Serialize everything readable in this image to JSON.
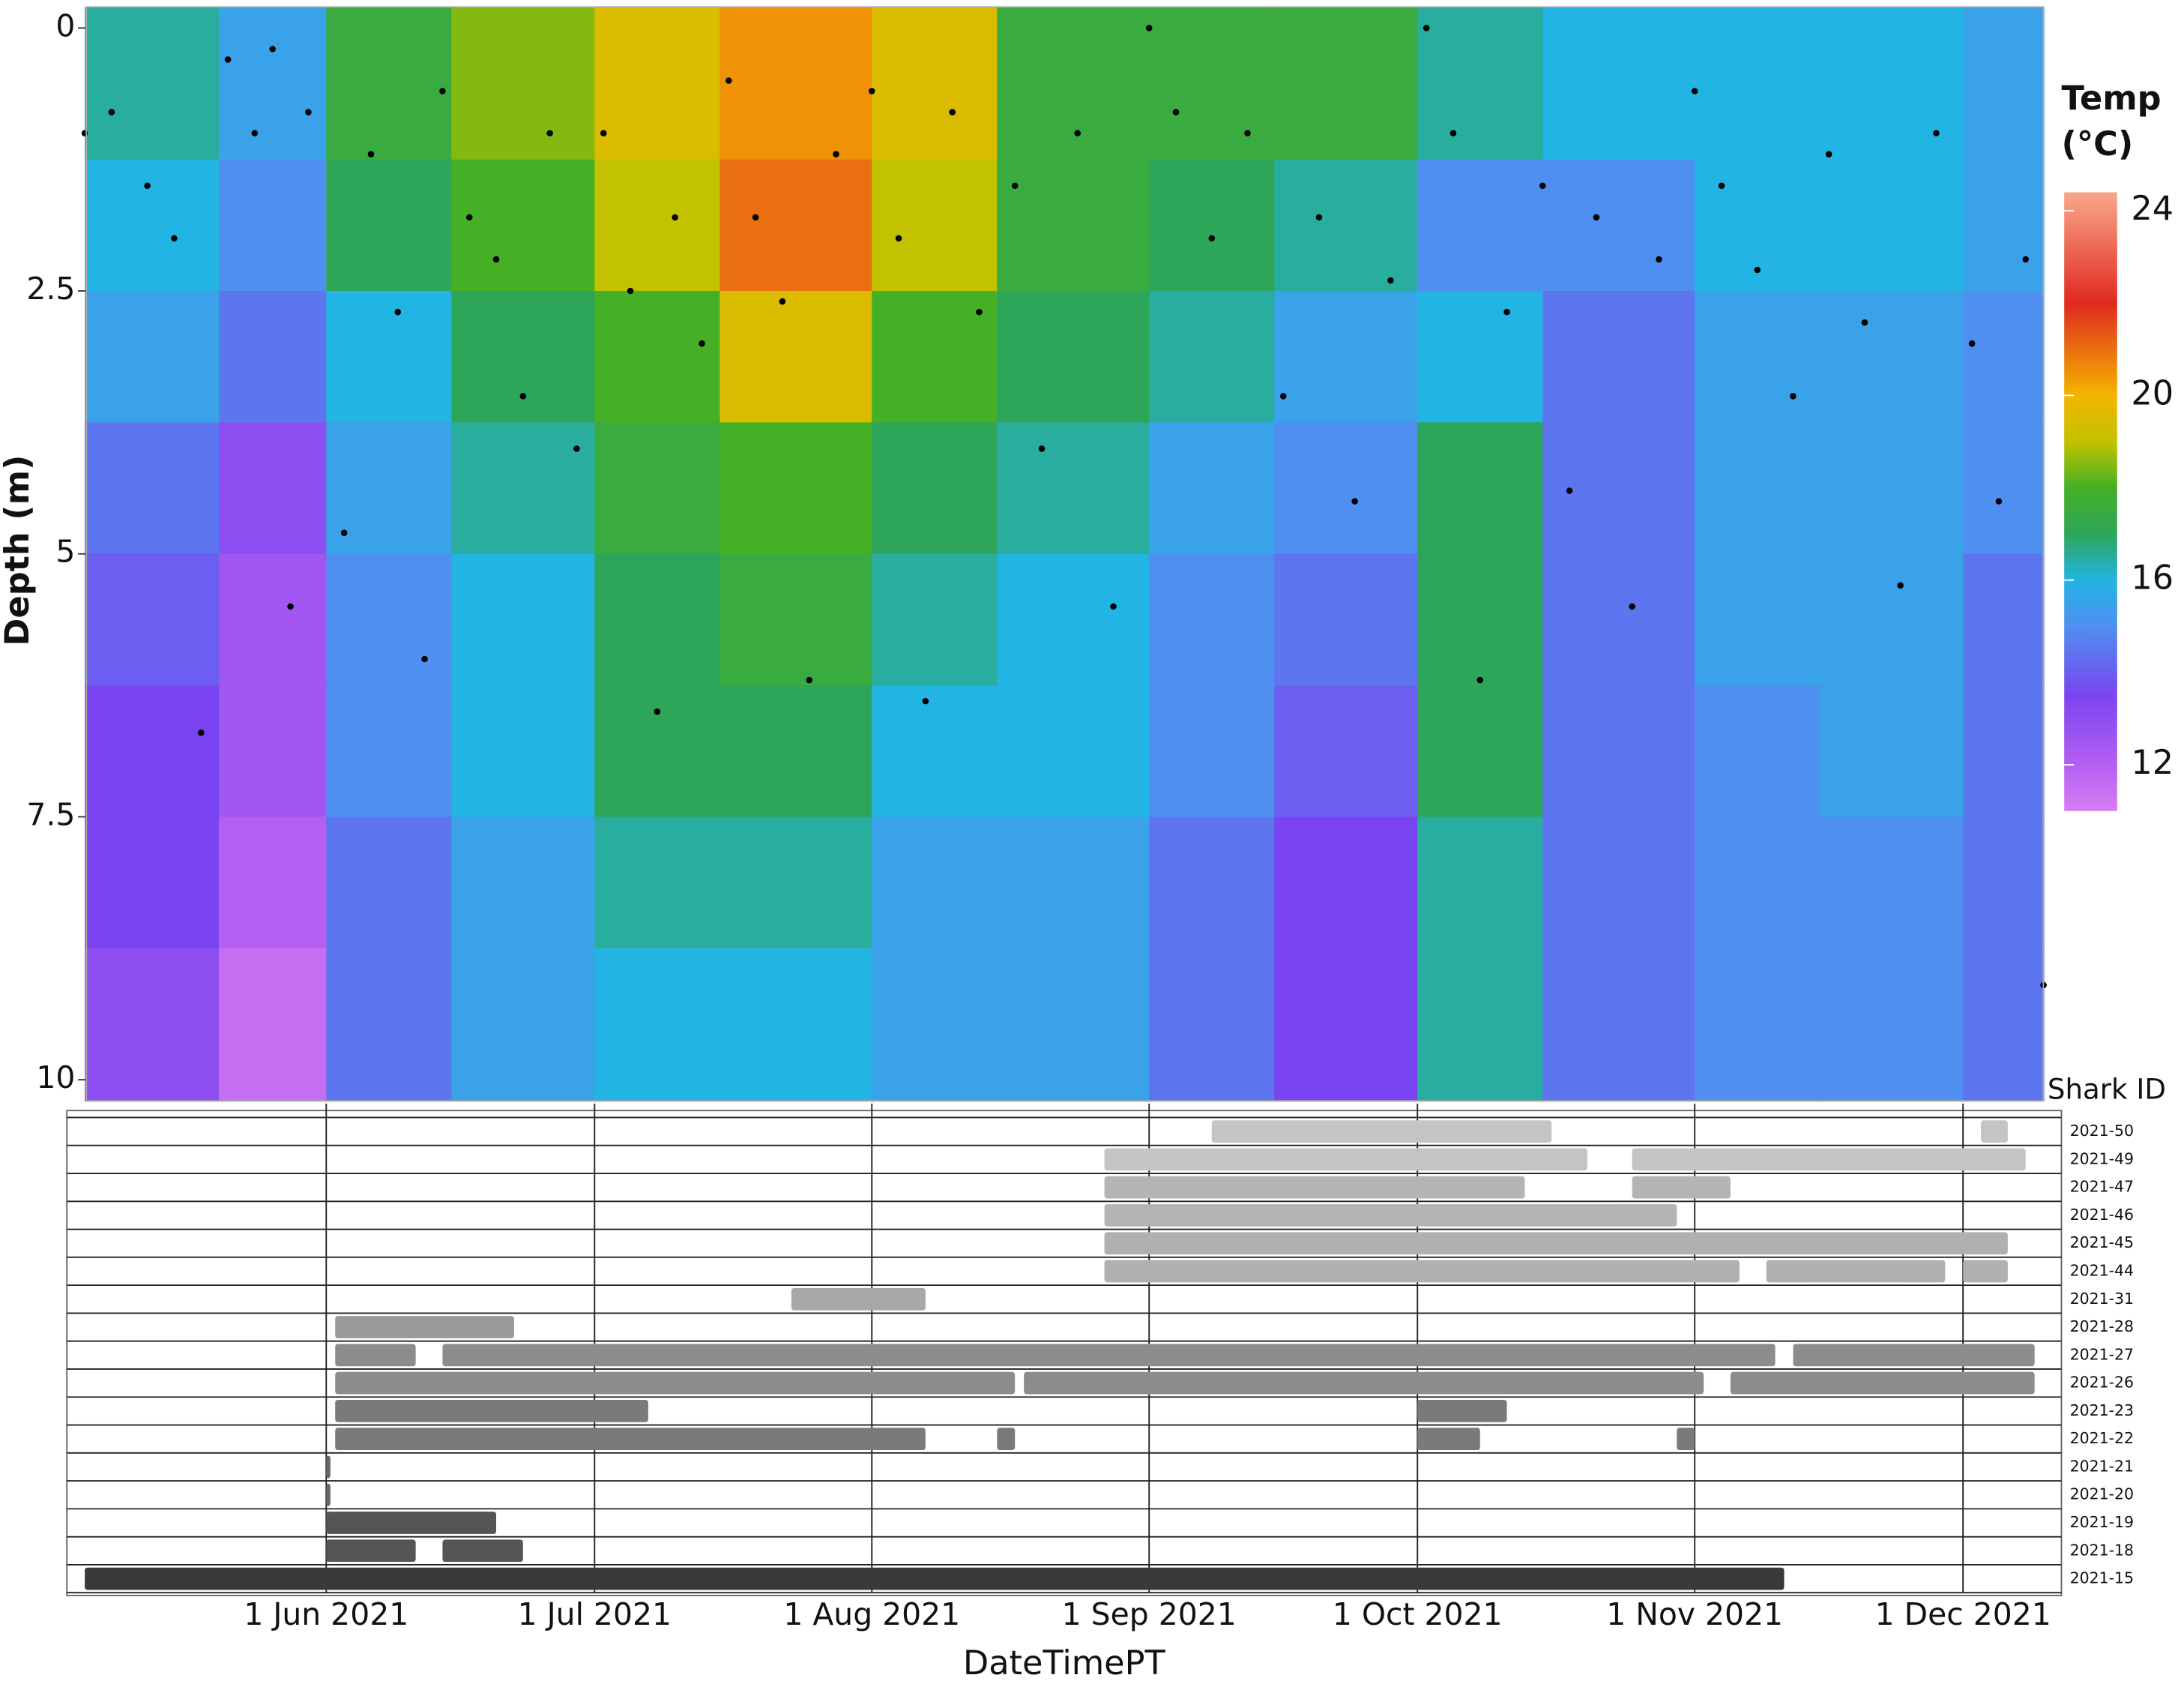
{
  "chart_data": [
    {
      "type": "heatmap",
      "ylabel": "Depth (m)",
      "colorbar_title": [
        "Temp",
        "(°C)"
      ],
      "xlim": [
        "2021-05-03",
        "2021-12-12"
      ],
      "ylim": [
        -0.2,
        10.2
      ],
      "yticks": [
        0,
        2.5,
        5,
        7.5,
        10
      ],
      "reverse_y": true,
      "x": [
        "2021-05-05",
        "2021-05-20",
        "2021-06-01",
        "2021-06-15",
        "2021-07-01",
        "2021-07-15",
        "2021-08-01",
        "2021-08-15",
        "2021-09-01",
        "2021-09-15",
        "2021-10-01",
        "2021-10-15",
        "2021-11-01",
        "2021-11-15",
        "2021-12-01",
        "2021-12-10"
      ],
      "y": [
        -0.2,
        1.25,
        2.5,
        3.75,
        5,
        6.25,
        7.5,
        8.75,
        10.2
      ],
      "z": [
        [
          16.5,
          15.5,
          17.5,
          18.5,
          19.5,
          20.5,
          19.5,
          17.5,
          17.5,
          17.5,
          16.5,
          16,
          16,
          16,
          15.5
        ],
        [
          16,
          15,
          17,
          18,
          19,
          21,
          19,
          17.5,
          17,
          16.5,
          15,
          15,
          16,
          16,
          15.5
        ],
        [
          15.5,
          14.5,
          16,
          17,
          18,
          19.5,
          18,
          17,
          16.5,
          15.5,
          16,
          14.5,
          15.5,
          15.5,
          15
        ],
        [
          14.5,
          13,
          15.5,
          16.5,
          17.5,
          18,
          17,
          16.5,
          15.5,
          15,
          17,
          14.5,
          15.5,
          15.5,
          15
        ],
        [
          14,
          12.5,
          15,
          16,
          17,
          17.5,
          16.5,
          16,
          15,
          14.5,
          17,
          14.5,
          15.5,
          15.5,
          14.5
        ],
        [
          13.5,
          12.5,
          15,
          16,
          17,
          17,
          16,
          16,
          15,
          14,
          17,
          14.5,
          15,
          15.5,
          14.5
        ],
        [
          13.5,
          12,
          14.5,
          15.5,
          16.5,
          16.5,
          15.5,
          15.5,
          14.5,
          13.5,
          16.5,
          14.5,
          15,
          15,
          14.5
        ],
        [
          13,
          11.5,
          14.5,
          15.5,
          16,
          16,
          15.5,
          15.5,
          14.5,
          13.5,
          16.5,
          14.5,
          15,
          15,
          14.5
        ]
      ],
      "clim": [
        11,
        24.4
      ],
      "colorbar_ticks": [
        12,
        16,
        20,
        24
      ],
      "colorscale": [
        [
          11,
          "#d67cf2"
        ],
        [
          12,
          "#b45ff2"
        ],
        [
          13.5,
          "#7a45f0"
        ],
        [
          15,
          "#4f8ff0"
        ],
        [
          16,
          "#22b4e2"
        ],
        [
          17,
          "#2ea65a"
        ],
        [
          18,
          "#45b025"
        ],
        [
          19,
          "#c2c200"
        ],
        [
          20,
          "#f4b400"
        ],
        [
          22,
          "#e02a20"
        ],
        [
          24.4,
          "#f9a88a"
        ]
      ],
      "points": {
        "color": "#000000",
        "x": [
          "2021-05-05",
          "2021-05-08",
          "2021-05-12",
          "2021-05-15",
          "2021-05-18",
          "2021-05-21",
          "2021-05-24",
          "2021-05-26",
          "2021-05-28",
          "2021-05-30",
          "2021-06-03",
          "2021-06-06",
          "2021-06-09",
          "2021-06-12",
          "2021-06-14",
          "2021-06-17",
          "2021-06-20",
          "2021-06-23",
          "2021-06-26",
          "2021-06-29",
          "2021-07-02",
          "2021-07-05",
          "2021-07-08",
          "2021-07-10",
          "2021-07-13",
          "2021-07-16",
          "2021-07-19",
          "2021-07-22",
          "2021-07-25",
          "2021-07-28",
          "2021-08-01",
          "2021-08-04",
          "2021-08-07",
          "2021-08-10",
          "2021-08-13",
          "2021-08-17",
          "2021-08-20",
          "2021-08-24",
          "2021-08-28",
          "2021-09-01",
          "2021-09-04",
          "2021-09-08",
          "2021-09-12",
          "2021-09-16",
          "2021-09-20",
          "2021-09-24",
          "2021-09-28",
          "2021-10-02",
          "2021-10-05",
          "2021-10-08",
          "2021-10-11",
          "2021-10-15",
          "2021-10-18",
          "2021-10-21",
          "2021-10-25",
          "2021-10-28",
          "2021-11-01",
          "2021-11-04",
          "2021-11-08",
          "2021-11-12",
          "2021-11-16",
          "2021-11-20",
          "2021-11-24",
          "2021-11-28",
          "2021-12-02",
          "2021-12-05",
          "2021-12-08",
          "2021-12-10"
        ],
        "y": [
          1.0,
          0.8,
          1.5,
          2.0,
          6.7,
          0.3,
          1.0,
          0.2,
          5.5,
          0.8,
          4.8,
          1.2,
          2.7,
          6.0,
          0.6,
          1.8,
          2.2,
          3.5,
          1.0,
          4.0,
          1.0,
          2.5,
          6.5,
          1.8,
          3.0,
          0.5,
          1.8,
          2.6,
          6.2,
          1.2,
          0.6,
          2.0,
          6.4,
          0.8,
          2.7,
          1.5,
          4.0,
          1.0,
          5.5,
          0.0,
          0.8,
          2.0,
          1.0,
          3.5,
          1.8,
          4.5,
          2.4,
          0.0,
          1.0,
          6.2,
          2.7,
          1.5,
          4.4,
          1.8,
          5.5,
          2.2,
          0.6,
          1.5,
          2.3,
          3.5,
          1.2,
          2.8,
          5.3,
          1.0,
          3.0,
          4.5,
          2.2,
          9.1
        ]
      }
    },
    {
      "type": "timeline",
      "xlabel": "DateTimePT",
      "category_title": "Shark ID",
      "xlim": [
        "2021-05-03",
        "2021-12-12"
      ],
      "xticks": [
        {
          "value": "2021-06-01",
          "label": "1 Jun 2021"
        },
        {
          "value": "2021-07-01",
          "label": "1 Jul 2021"
        },
        {
          "value": "2021-08-01",
          "label": "1 Aug 2021"
        },
        {
          "value": "2021-09-01",
          "label": "1 Sep 2021"
        },
        {
          "value": "2021-10-01",
          "label": "1 Oct 2021"
        },
        {
          "value": "2021-11-01",
          "label": "1 Nov 2021"
        },
        {
          "value": "2021-12-01",
          "label": "1 Dec 2021"
        }
      ],
      "categories": [
        "2021-50",
        "2021-49",
        "2021-47",
        "2021-46",
        "2021-45",
        "2021-44",
        "2021-31",
        "2021-28",
        "2021-27",
        "2021-26",
        "2021-23",
        "2021-22",
        "2021-21",
        "2021-20",
        "2021-19",
        "2021-18",
        "2021-15"
      ],
      "colors": [
        "#c4c4c4",
        "#c4c4c4",
        "#b4b4b4",
        "#b4b4b4",
        "#b0b0b0",
        "#b0b0b0",
        "#a8a8a8",
        "#9a9a9a",
        "#8c8c8c",
        "#8c8c8c",
        "#7a7a7a",
        "#7a7a7a",
        "#666666",
        "#666666",
        "#555555",
        "#555555",
        "#3a3a3a"
      ],
      "segments": [
        [
          [
            "2021-09-08",
            "2021-10-16"
          ],
          [
            "2021-12-03",
            "2021-12-06"
          ]
        ],
        [
          [
            "2021-08-27",
            "2021-10-20"
          ],
          [
            "2021-10-25",
            "2021-12-08"
          ]
        ],
        [
          [
            "2021-08-27",
            "2021-10-13"
          ],
          [
            "2021-10-25",
            "2021-11-05"
          ]
        ],
        [
          [
            "2021-08-27",
            "2021-10-30"
          ]
        ],
        [
          [
            "2021-08-27",
            "2021-12-06"
          ]
        ],
        [
          [
            "2021-08-27",
            "2021-11-06"
          ],
          [
            "2021-11-09",
            "2021-11-29"
          ],
          [
            "2021-12-01",
            "2021-12-06"
          ]
        ],
        [
          [
            "2021-07-23",
            "2021-08-07"
          ]
        ],
        [
          [
            "2021-06-02",
            "2021-06-22"
          ]
        ],
        [
          [
            "2021-06-02",
            "2021-06-11"
          ],
          [
            "2021-06-14",
            "2021-11-10"
          ],
          [
            "2021-11-12",
            "2021-12-09"
          ]
        ],
        [
          [
            "2021-06-02",
            "2021-08-17"
          ],
          [
            "2021-08-18",
            "2021-11-02"
          ],
          [
            "2021-11-05",
            "2021-12-09"
          ]
        ],
        [
          [
            "2021-06-02",
            "2021-07-07"
          ],
          [
            "2021-10-01",
            "2021-10-11"
          ]
        ],
        [
          [
            "2021-06-02",
            "2021-08-07"
          ],
          [
            "2021-08-15",
            "2021-08-17"
          ],
          [
            "2021-10-01",
            "2021-10-08"
          ],
          [
            "2021-10-30",
            "2021-11-01"
          ]
        ],
        [
          [
            "2021-06-01",
            "2021-06-01"
          ]
        ],
        [
          [
            "2021-06-01",
            "2021-06-01"
          ]
        ],
        [
          [
            "2021-06-01",
            "2021-06-20"
          ]
        ],
        [
          [
            "2021-06-01",
            "2021-06-11"
          ],
          [
            "2021-06-14",
            "2021-06-23"
          ]
        ],
        [
          [
            "2021-05-05",
            "2021-11-11"
          ]
        ]
      ]
    }
  ]
}
